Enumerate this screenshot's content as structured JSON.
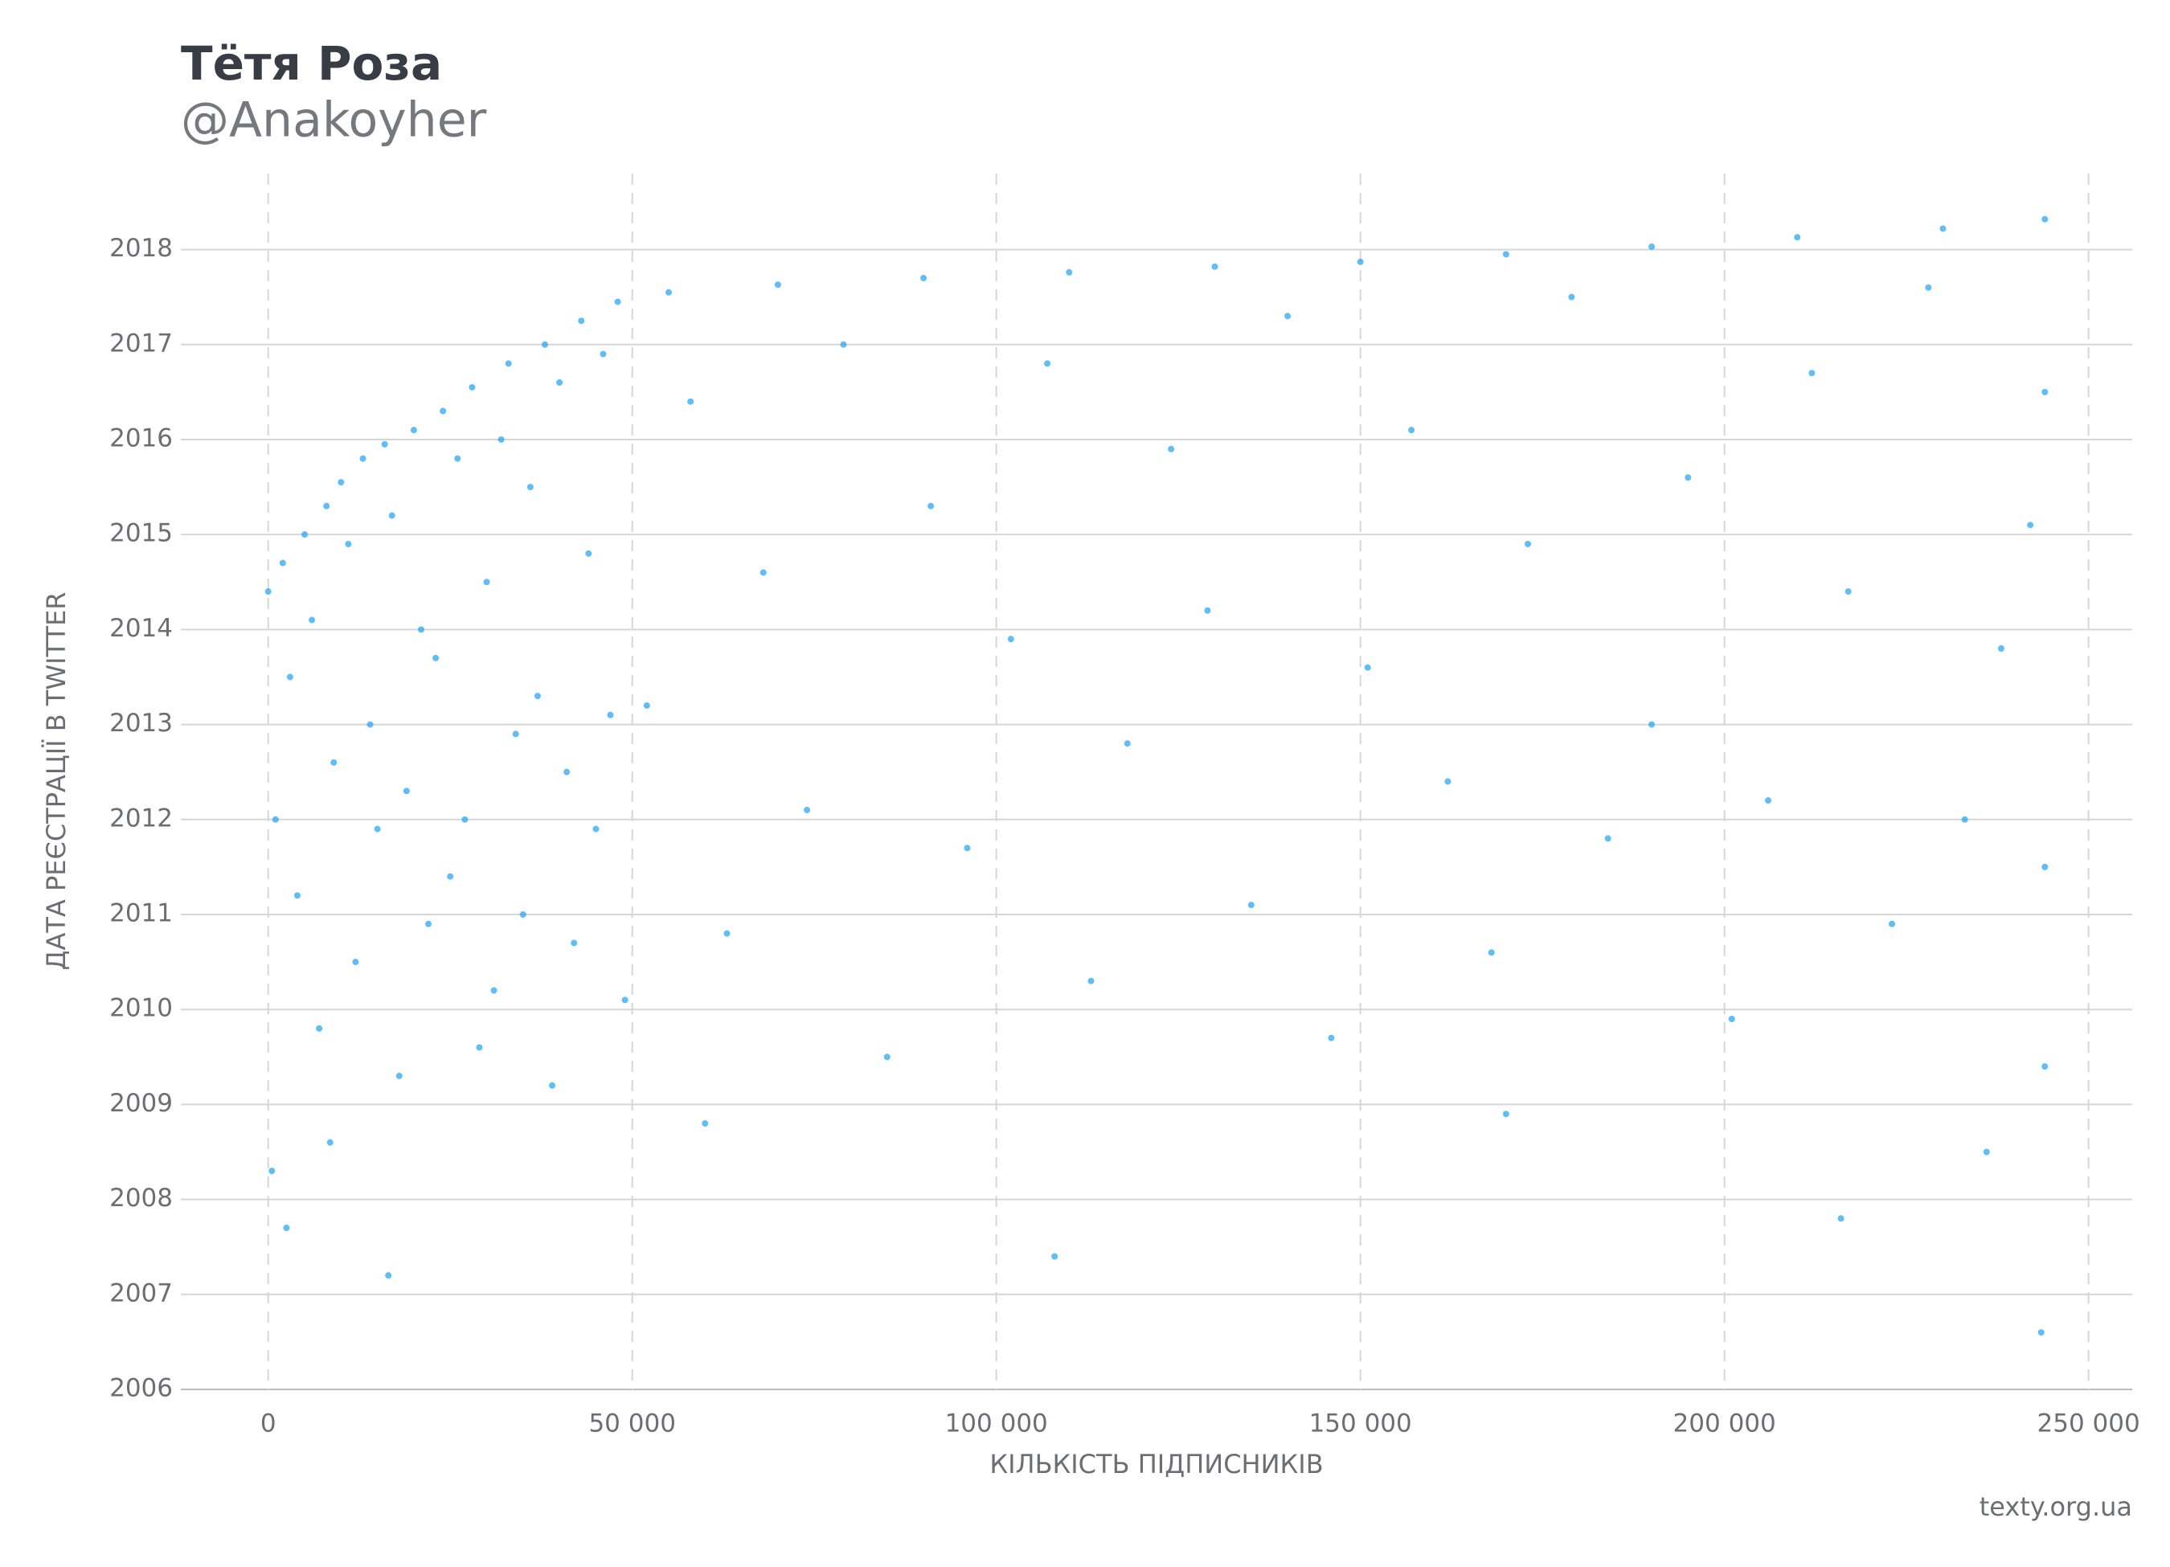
{
  "chart_data": {
    "type": "scatter",
    "title": "Тётя Роза",
    "subtitle": "@Anakoyher",
    "x_label": "КІЛЬКІСТЬ ПІДПИСНИКІВ",
    "y_label": "ДАТА РЕЄСТРАЦІЇ В TWITTER",
    "source": "texty.org.ua",
    "color": "#1da1f2",
    "grid": true,
    "xlim": [
      -12000,
      256000
    ],
    "ylim": [
      2006,
      2018.8
    ],
    "xticks": [
      0,
      {
        "value": 50000,
        "label": "50 000"
      },
      {
        "value": 100000,
        "label": "100 000"
      },
      {
        "value": 150000,
        "label": "150 000"
      },
      {
        "value": 200000,
        "label": "200 000"
      },
      {
        "value": 250000,
        "label": "250 000"
      }
    ],
    "yticks": [
      2006,
      2007,
      2008,
      2009,
      2010,
      2011,
      2012,
      2013,
      2014,
      2015,
      2016,
      2017,
      2018
    ],
    "x": [
      0,
      2000,
      5000,
      8000,
      10000,
      13000,
      16000,
      20000,
      24000,
      28000,
      33000,
      38000,
      43000,
      48000,
      55000,
      70000,
      90000,
      110000,
      130000,
      150000,
      170000,
      190000,
      210000,
      230000,
      244000,
      1000,
      3000,
      4000,
      6000,
      7000,
      9000,
      11000,
      12000,
      14000,
      15000,
      17000,
      18000,
      19000,
      21000,
      22000,
      23000,
      25000,
      26000,
      27000,
      29000,
      30000,
      31000,
      32000,
      34000,
      35000,
      36000,
      37000,
      39000,
      40000,
      41000,
      42000,
      44000,
      45000,
      46000,
      47000,
      49000,
      500,
      2500,
      8500,
      16500,
      52000,
      58000,
      63000,
      68000,
      74000,
      79000,
      85000,
      91000,
      96000,
      102000,
      107000,
      113000,
      118000,
      124000,
      129000,
      135000,
      140000,
      146000,
      151000,
      157000,
      162000,
      168000,
      173000,
      179000,
      184000,
      190000,
      195000,
      201000,
      206000,
      212000,
      217000,
      223000,
      228000,
      233000,
      238000,
      242000,
      244000,
      244000,
      244000,
      60000,
      108000,
      170000,
      216000,
      236000,
      243500
    ],
    "y": [
      2014.4,
      2014.7,
      2015.0,
      2015.3,
      2015.55,
      2015.8,
      2015.95,
      2016.1,
      2016.3,
      2016.55,
      2016.8,
      2017.0,
      2017.25,
      2017.45,
      2017.55,
      2017.63,
      2017.7,
      2017.76,
      2017.82,
      2017.87,
      2017.95,
      2018.03,
      2018.13,
      2018.22,
      2018.32,
      2012.0,
      2013.5,
      2011.2,
      2014.1,
      2009.8,
      2012.6,
      2014.9,
      2010.5,
      2013.0,
      2011.9,
      2015.2,
      2009.3,
      2012.3,
      2014.0,
      2010.9,
      2013.7,
      2011.4,
      2015.8,
      2012.0,
      2009.6,
      2014.5,
      2010.2,
      2016.0,
      2012.9,
      2011.0,
      2015.5,
      2013.3,
      2009.2,
      2016.6,
      2012.5,
      2010.7,
      2014.8,
      2011.9,
      2016.9,
      2013.1,
      2010.1,
      2008.3,
      2007.7,
      2008.6,
      2007.2,
      2013.2,
      2016.4,
      2010.8,
      2014.6,
      2012.1,
      2017.0,
      2009.5,
      2015.3,
      2011.7,
      2013.9,
      2016.8,
      2010.3,
      2012.8,
      2015.9,
      2014.2,
      2011.1,
      2017.3,
      2009.7,
      2013.6,
      2016.1,
      2012.4,
      2010.6,
      2014.9,
      2017.5,
      2011.8,
      2013.0,
      2015.6,
      2009.9,
      2012.2,
      2016.7,
      2014.4,
      2010.9,
      2017.6,
      2012.0,
      2013.8,
      2015.1,
      2016.5,
      2011.5,
      2009.4,
      2008.8,
      2007.4,
      2008.9,
      2007.8,
      2008.5,
      2006.6
    ]
  }
}
